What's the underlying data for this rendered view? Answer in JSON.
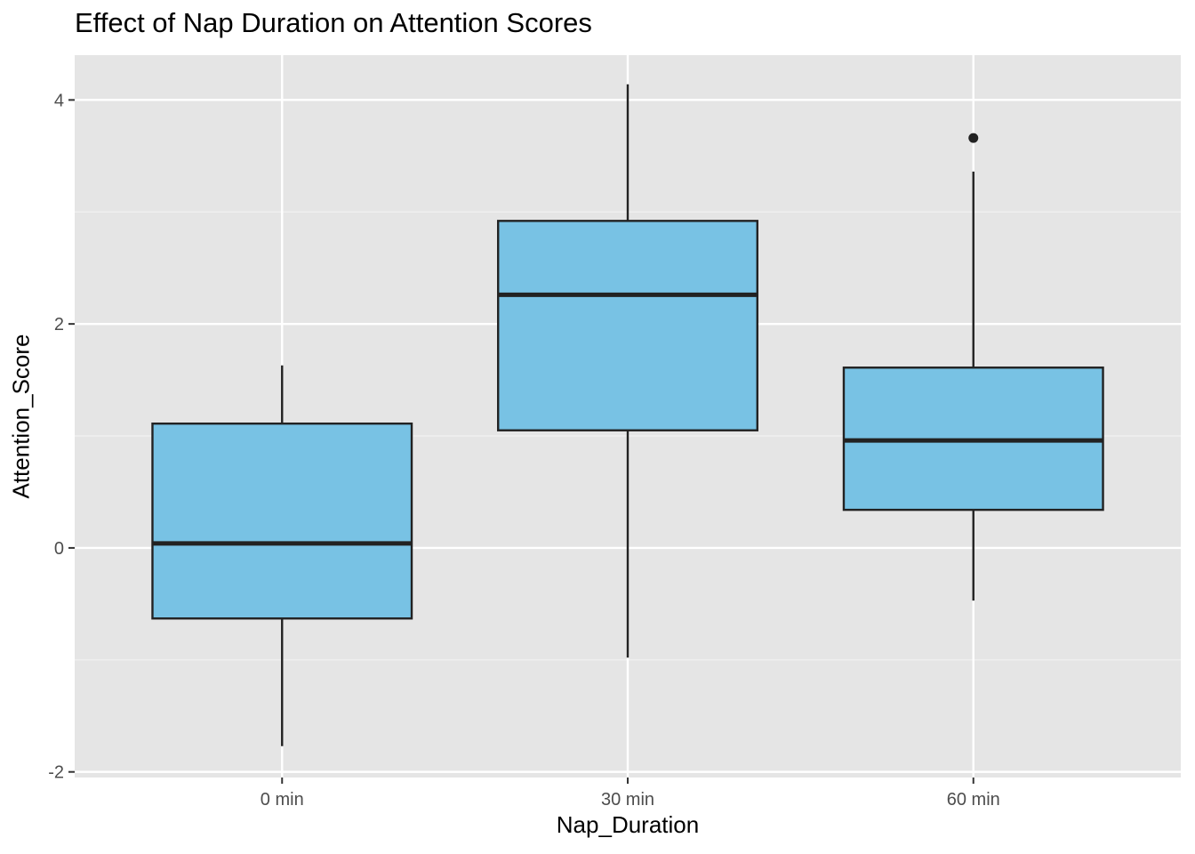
{
  "chart_data": {
    "type": "boxplot",
    "title": "Effect of Nap Duration on Attention Scores",
    "xlabel": "Nap_Duration",
    "ylabel": "Attention_Score",
    "categories": [
      "0 min",
      "30 min",
      "60 min"
    ],
    "ylim": [
      -2.05,
      4.4
    ],
    "yticks": [
      -2,
      0,
      2,
      4
    ],
    "y_tick_labels": [
      "-2",
      "0",
      "2",
      "4"
    ],
    "grid": true,
    "boxes": [
      {
        "category": "0 min",
        "whisker_low": -1.77,
        "q1": -0.63,
        "median": 0.04,
        "q3": 1.11,
        "whisker_high": 1.63,
        "outliers": []
      },
      {
        "category": "30 min",
        "whisker_low": -0.98,
        "q1": 1.05,
        "median": 2.26,
        "q3": 2.92,
        "whisker_high": 4.14,
        "outliers": []
      },
      {
        "category": "60 min",
        "whisker_low": -0.47,
        "q1": 0.34,
        "median": 0.96,
        "q3": 1.61,
        "whisker_high": 3.36,
        "outliers": [
          3.66
        ]
      }
    ],
    "colors": {
      "box_fill": "#78C2E4",
      "box_stroke": "#222222",
      "panel_background": "#E5E5E5",
      "grid_major": "#FFFFFF",
      "grid_minor": "#F2F2F2",
      "tick_label": "#4D4D4D"
    }
  }
}
